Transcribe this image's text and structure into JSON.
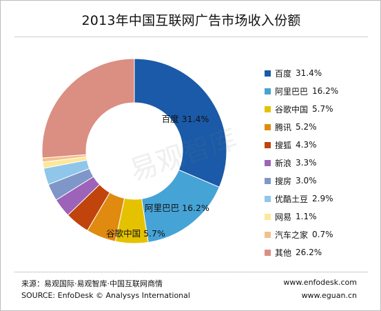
{
  "title": "2013年中国互联网广告市场收入份额",
  "watermark": "易观智库",
  "chart_data": {
    "type": "pie",
    "donut": true,
    "start_angle_deg": 0,
    "direction": "clockwise",
    "categories": [
      "百度",
      "阿里巴巴",
      "谷歌中国",
      "腾讯",
      "搜狐",
      "新浪",
      "搜房",
      "优酷土豆",
      "网易",
      "汽车之家",
      "其他"
    ],
    "values": [
      31.4,
      16.2,
      5.7,
      5.2,
      4.3,
      3.3,
      3.0,
      2.9,
      1.1,
      0.7,
      26.2
    ],
    "value_labels": [
      "31.4%",
      "16.2%",
      "5.7%",
      "5.2%",
      "4.3%",
      "3.3%",
      "3.0%",
      "2.9%",
      "1.1%",
      "0.7%",
      "26.2%"
    ],
    "colors": [
      "#1a5aa8",
      "#46a3d6",
      "#e5c200",
      "#e08a10",
      "#c0440c",
      "#9c63b8",
      "#7f96c8",
      "#8fc6ea",
      "#fde79a",
      "#f4c08a",
      "#db8e82"
    ],
    "slice_labels": [
      {
        "category": "百度",
        "value": "31.4%"
      },
      {
        "category": "阿里巴巴",
        "value": "16.2%"
      },
      {
        "category": "谷歌中国",
        "value": "5.7%"
      }
    ],
    "legend_position": "right"
  },
  "footer": {
    "source_cn": "来源：易观国际·易观智库·中国互联网商情",
    "source_en": "SOURCE: EnfoDesk © Analysys International",
    "url1": "www.enfodesk.com",
    "url2": "www.eguan.cn"
  }
}
